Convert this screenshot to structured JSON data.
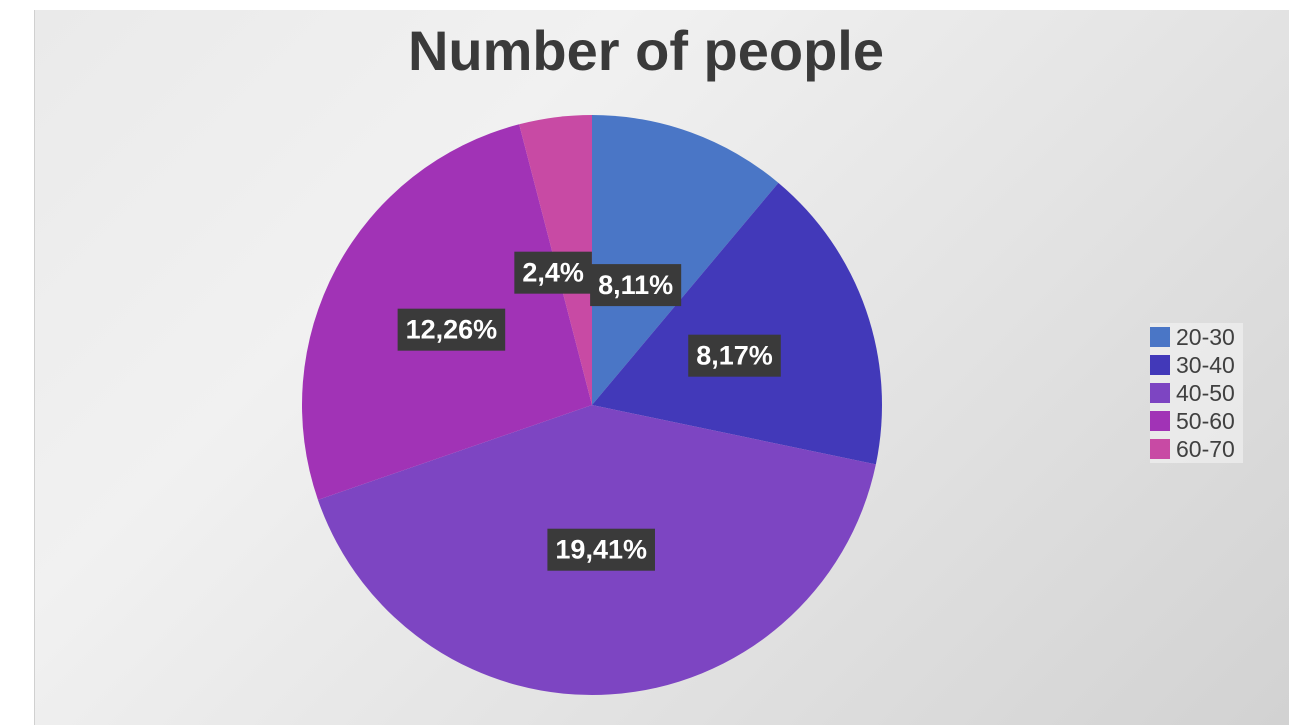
{
  "chart_data": {
    "type": "pie",
    "title": "Number of people",
    "categories": [
      "20-30",
      "30-40",
      "40-50",
      "50-60",
      "60-70"
    ],
    "values": [
      11,
      17,
      41,
      26,
      4
    ],
    "labels": [
      "8,11%",
      "8,17%",
      "19,41%",
      "12,26%",
      "2,4%"
    ],
    "colors": [
      "#4a76c6",
      "#4239b9",
      "#7d45c2",
      "#a133b6",
      "#c84aa4"
    ],
    "legend": "right"
  }
}
